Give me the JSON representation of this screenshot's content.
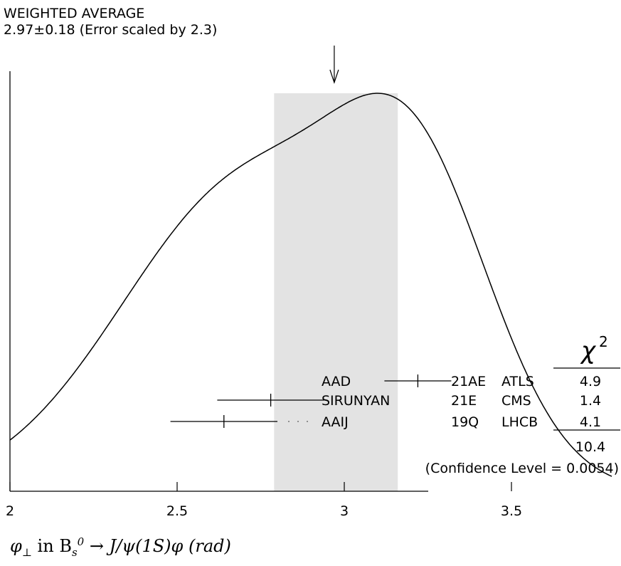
{
  "header": {
    "line1": "WEIGHTED AVERAGE",
    "line2": "2.97±0.18 (Error scaled by 2.3)"
  },
  "xlabel": {
    "phi": "φ",
    "phi_sub": "⊥",
    "mid": " in B",
    "b_sub": "s",
    "b_sup": "0",
    "arrow": " → ",
    "tail": "J/ψ(1S)φ (rad)"
  },
  "chi2_header": "χ",
  "chi2_header_sup": "2",
  "chi2_total": "10.4",
  "confidence_level": "(Confidence Level = 0.0054)",
  "chart_data": {
    "type": "ideogram",
    "xlim": [
      2,
      4.5
    ],
    "x_ticks": [
      "2",
      "2.5",
      "3",
      "3.5",
      "4",
      "4.5"
    ],
    "weighted_average": {
      "value": 2.97,
      "error": 0.18,
      "scale_factor": 2.3,
      "band": [
        2.79,
        3.16
      ]
    },
    "measurements": [
      {
        "author": "AAD",
        "ref": "21AE",
        "experiment": "ATLS",
        "value": 3.22,
        "error": 0.1,
        "chi2": "4.9"
      },
      {
        "author": "SIRUNYAN",
        "ref": "21E",
        "experiment": "CMS",
        "value": 2.78,
        "error": 0.16,
        "chi2": "1.4"
      },
      {
        "author": "AAIJ",
        "ref": "19Q",
        "experiment": "LHCB",
        "value": 2.64,
        "error": 0.16,
        "chi2": "4.1"
      }
    ],
    "ideogram_peaks": [
      {
        "x": 2.71,
        "relative_height": 0.849
      },
      {
        "x": 3.22,
        "relative_height": 1.0
      }
    ],
    "ideogram_minimum": {
      "x": 2.99,
      "relative_height": 0.371
    }
  }
}
